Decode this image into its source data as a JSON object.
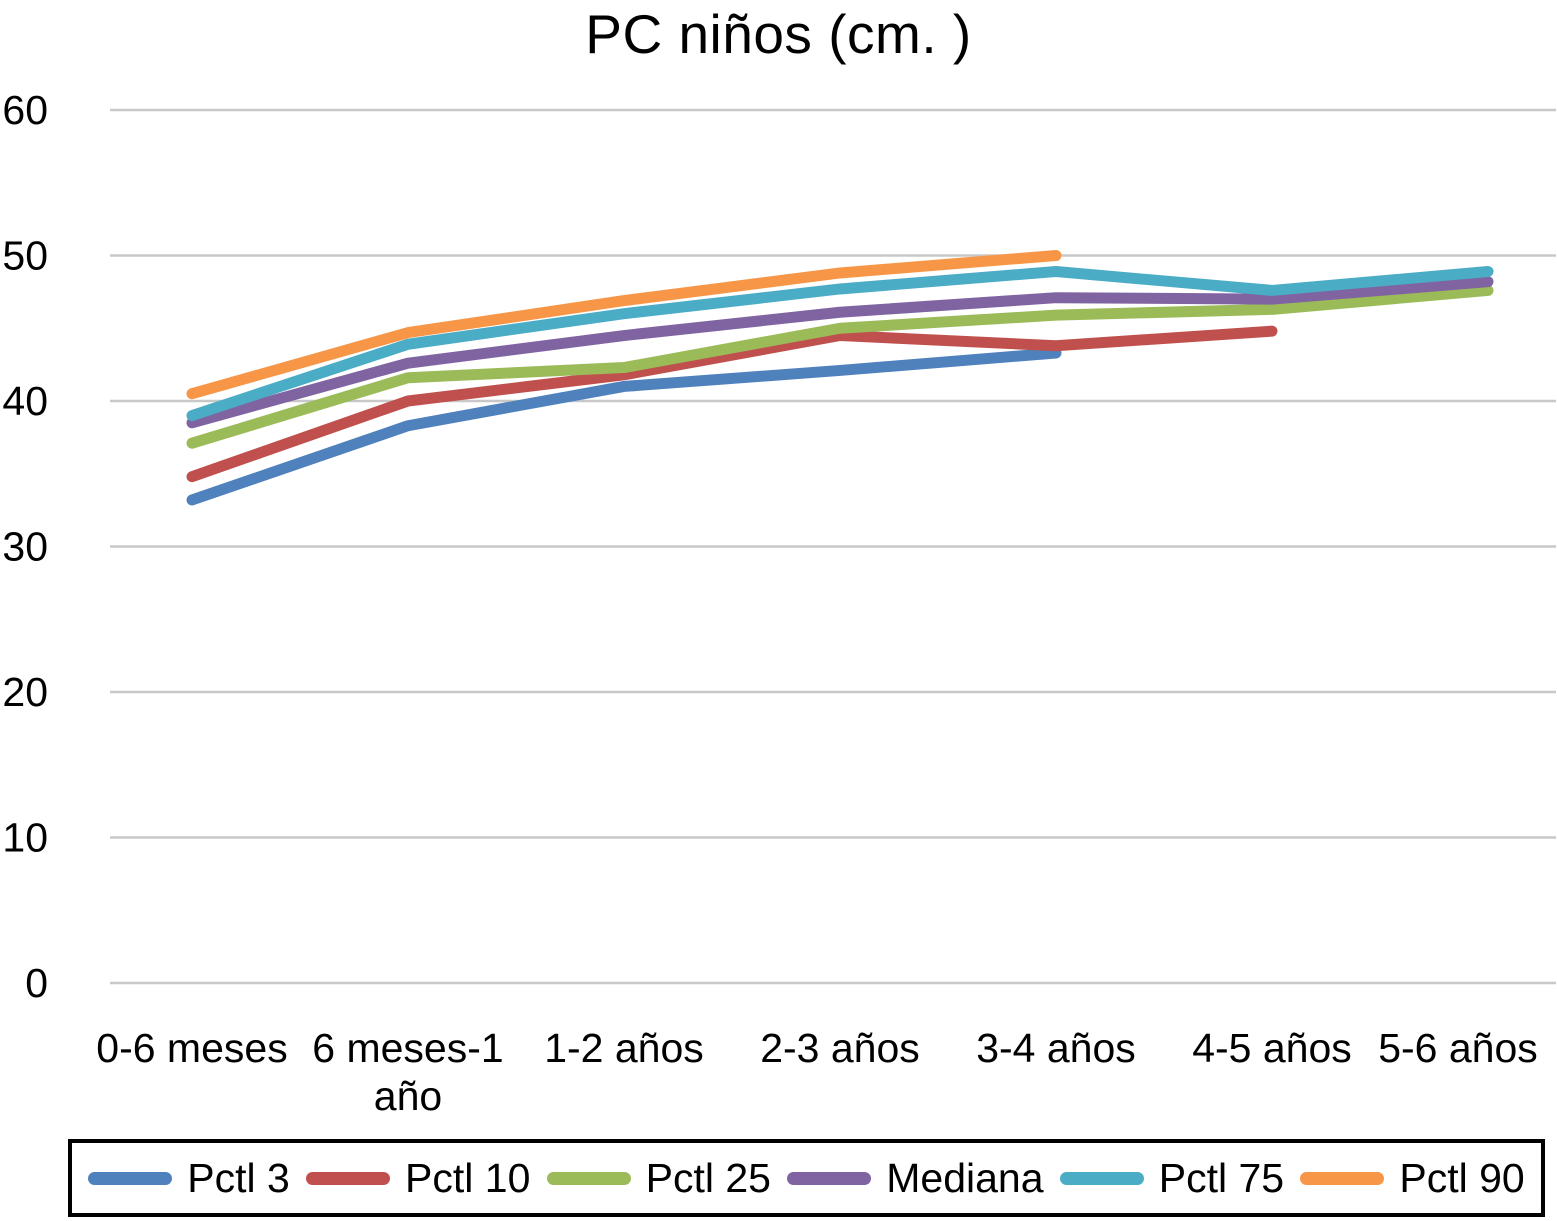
{
  "chart_data": {
    "type": "line",
    "title": "PC niños (cm. )",
    "xlabel": "",
    "ylabel": "",
    "ylim": [
      0,
      60
    ],
    "grid": true,
    "legend_position": "bottom",
    "categories": [
      "0-6 meses",
      "6 meses-1 año",
      "1-2 años",
      "2-3 años",
      "3-4 años",
      "4-5 años",
      "5-6 años"
    ],
    "categories_display": [
      [
        "0-6 meses"
      ],
      [
        "6 meses-1",
        "año"
      ],
      [
        "1-2 años"
      ],
      [
        "2-3 años"
      ],
      [
        "3-4 años"
      ],
      [
        "4-5 años"
      ],
      [
        "5-6 años"
      ]
    ],
    "y_axis": {
      "min": 0,
      "max": 60,
      "tick_step": 10,
      "ticks": [
        0,
        10,
        20,
        30,
        40,
        50,
        60
      ]
    },
    "series": [
      {
        "name": "Pctl 3",
        "color": "#4F81BD",
        "values": [
          33.2,
          38.3,
          41.0,
          42.1,
          43.3,
          null,
          null
        ]
      },
      {
        "name": "Pctl 10",
        "color": "#C0504D",
        "values": [
          34.8,
          40.0,
          41.8,
          44.5,
          43.8,
          44.8,
          null
        ]
      },
      {
        "name": "Pctl 25",
        "color": "#9BBB59",
        "values": [
          37.1,
          41.6,
          42.3,
          45.0,
          45.9,
          46.3,
          47.6
        ]
      },
      {
        "name": "Mediana",
        "color": "#8064A2",
        "values": [
          38.5,
          42.6,
          44.5,
          46.1,
          47.1,
          47.0,
          48.2
        ]
      },
      {
        "name": "Pctl 75",
        "color": "#4BACC6",
        "values": [
          39.0,
          43.9,
          46.0,
          47.7,
          48.9,
          47.6,
          48.9
        ]
      },
      {
        "name": "Pctl 90",
        "color": "#F79646",
        "values": [
          40.5,
          44.7,
          46.9,
          48.8,
          50.0,
          null,
          null
        ]
      }
    ]
  },
  "colors": {
    "grid": "#C8C8C8",
    "text": "#000000",
    "background": "#FFFFFF",
    "legend_border": "#000000"
  }
}
